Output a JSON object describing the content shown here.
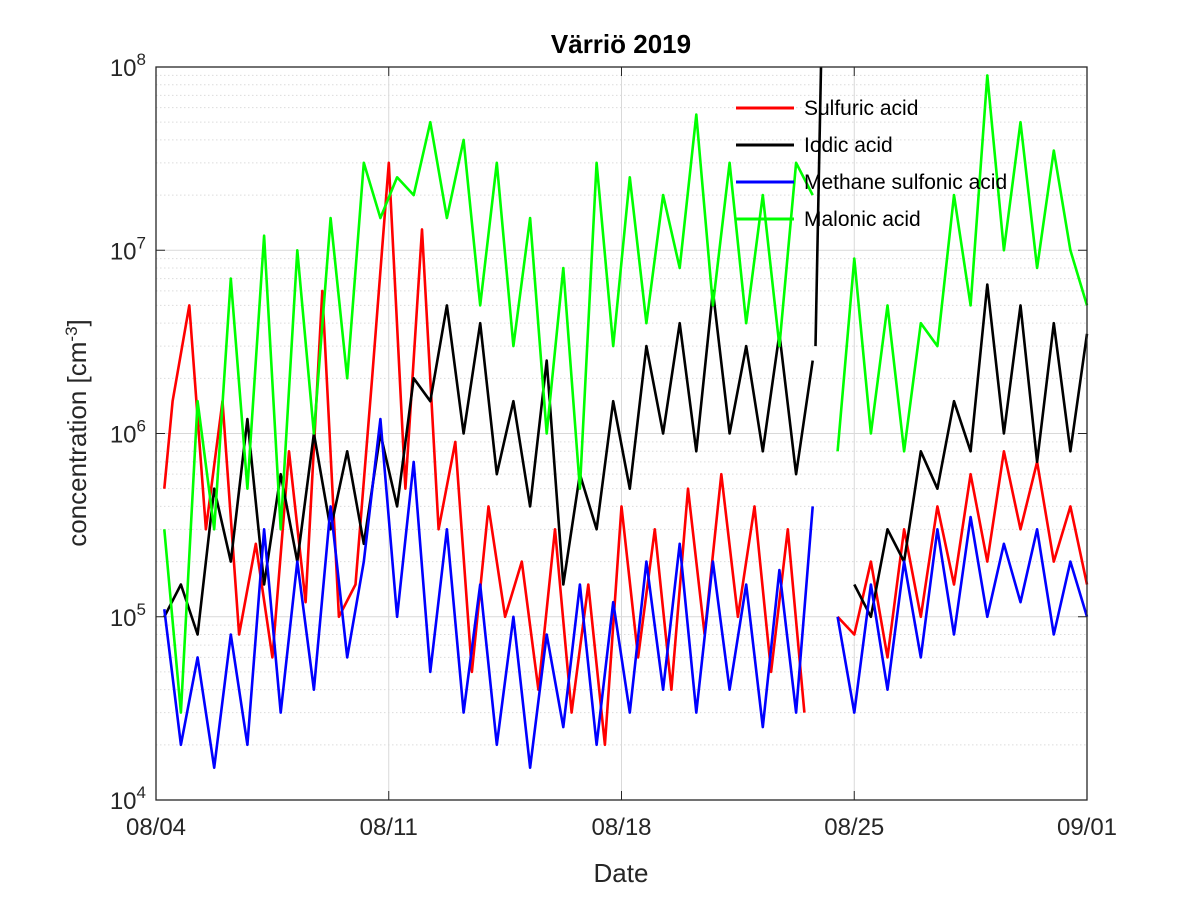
{
  "chart_data": {
    "type": "line",
    "title": "Värriö 2019",
    "xlabel": "Date",
    "ylabel_main": "concentration [cm",
    "ylabel_sup": "-3",
    "ylabel_close": "]",
    "yscale": "log",
    "ylim": [
      10000,
      100000000
    ],
    "xlim": [
      "2019-08-04",
      "2019-09-01"
    ],
    "grid": true,
    "minor_grid": true,
    "legend_position": "top-right",
    "x_ticks": [
      {
        "date": "2019-08-04",
        "label": "08/04"
      },
      {
        "date": "2019-08-11",
        "label": "08/11"
      },
      {
        "date": "2019-08-18",
        "label": "08/18"
      },
      {
        "date": "2019-08-25",
        "label": "08/25"
      },
      {
        "date": "2019-09-01",
        "label": "09/01"
      }
    ],
    "y_ticks": [
      {
        "value": 10000,
        "base": "10",
        "exp": "4"
      },
      {
        "value": 100000,
        "base": "10",
        "exp": "5"
      },
      {
        "value": 1000000,
        "base": "10",
        "exp": "6"
      },
      {
        "value": 10000000,
        "base": "10",
        "exp": "7"
      },
      {
        "value": 100000000,
        "base": "10",
        "exp": "8"
      }
    ],
    "series": [
      {
        "name": "Sulfuric acid",
        "color": "#ff0000",
        "segments": [
          {
            "x": [
              "2019-08-04T06:00",
              "2019-08-04T12:00",
              "2019-08-05T00:00",
              "2019-08-05T12:00",
              "2019-08-06T00:00",
              "2019-08-06T12:00",
              "2019-08-07T00:00",
              "2019-08-07T12:00",
              "2019-08-08T00:00",
              "2019-08-08T12:00",
              "2019-08-09T00:00",
              "2019-08-09T12:00",
              "2019-08-10T00:00",
              "2019-08-10T12:00",
              "2019-08-11T00:00",
              "2019-08-11T12:00",
              "2019-08-12T00:00",
              "2019-08-12T12:00",
              "2019-08-13T00:00",
              "2019-08-13T12:00",
              "2019-08-14T00:00",
              "2019-08-14T12:00",
              "2019-08-15T00:00",
              "2019-08-15T12:00",
              "2019-08-16T00:00",
              "2019-08-16T12:00",
              "2019-08-17T00:00",
              "2019-08-17T12:00",
              "2019-08-18T00:00",
              "2019-08-18T12:00",
              "2019-08-19T00:00",
              "2019-08-19T12:00",
              "2019-08-20T00:00",
              "2019-08-20T12:00",
              "2019-08-21T00:00",
              "2019-08-21T12:00",
              "2019-08-22T00:00",
              "2019-08-22T12:00",
              "2019-08-23T00:00",
              "2019-08-23T12:00"
            ],
            "y": [
              500000,
              1500000,
              5000000,
              300000,
              1500000,
              80000,
              250000,
              60000,
              800000,
              120000,
              6000000,
              100000,
              150000,
              2000000,
              30000000,
              500000,
              13000000,
              300000,
              900000,
              50000,
              400000,
              100000,
              200000,
              40000,
              300000,
              30000,
              150000,
              20000,
              400000,
              60000,
              300000,
              40000,
              500000,
              80000,
              600000,
              100000,
              400000,
              50000,
              300000,
              30000
            ]
          },
          {
            "x": [
              "2019-08-24T12:00",
              "2019-08-25T00:00",
              "2019-08-25T12:00",
              "2019-08-26T00:00",
              "2019-08-26T12:00",
              "2019-08-27T00:00",
              "2019-08-27T12:00",
              "2019-08-28T00:00",
              "2019-08-28T12:00",
              "2019-08-29T00:00",
              "2019-08-29T12:00",
              "2019-08-30T00:00",
              "2019-08-30T12:00",
              "2019-08-31T00:00",
              "2019-08-31T12:00",
              "2019-09-01T00:00"
            ],
            "y": [
              100000,
              80000,
              200000,
              60000,
              300000,
              100000,
              400000,
              150000,
              600000,
              200000,
              800000,
              300000,
              700000,
              200000,
              400000,
              150000
            ]
          }
        ]
      },
      {
        "name": "Iodic acid",
        "color": "#000000",
        "segments": [
          {
            "x": [
              "2019-08-04T06:00",
              "2019-08-04T18:00",
              "2019-08-05T06:00",
              "2019-08-05T18:00",
              "2019-08-06T06:00",
              "2019-08-06T18:00",
              "2019-08-07T06:00",
              "2019-08-07T18:00",
              "2019-08-08T06:00",
              "2019-08-08T18:00",
              "2019-08-09T06:00",
              "2019-08-09T18:00",
              "2019-08-10T06:00",
              "2019-08-10T18:00",
              "2019-08-11T06:00",
              "2019-08-11T18:00",
              "2019-08-12T06:00",
              "2019-08-12T18:00",
              "2019-08-13T06:00",
              "2019-08-13T18:00",
              "2019-08-14T06:00",
              "2019-08-14T18:00",
              "2019-08-15T06:00",
              "2019-08-15T18:00",
              "2019-08-16T06:00",
              "2019-08-16T18:00",
              "2019-08-17T06:00",
              "2019-08-17T18:00",
              "2019-08-18T06:00",
              "2019-08-18T18:00",
              "2019-08-19T06:00",
              "2019-08-19T18:00",
              "2019-08-20T06:00",
              "2019-08-20T18:00",
              "2019-08-21T06:00",
              "2019-08-21T18:00",
              "2019-08-22T06:00",
              "2019-08-22T18:00",
              "2019-08-23T06:00",
              "2019-08-23T18:00"
            ],
            "y": [
              100000,
              150000,
              80000,
              500000,
              200000,
              1200000,
              150000,
              600000,
              200000,
              1000000,
              300000,
              800000,
              250000,
              1000000,
              400000,
              2000000,
              1500000,
              5000000,
              1000000,
              4000000,
              600000,
              1500000,
              400000,
              2500000,
              150000,
              600000,
              300000,
              1500000,
              500000,
              3000000,
              1000000,
              4000000,
              800000,
              6000000,
              1000000,
              3000000,
              800000,
              3500000,
              600000,
              2500000
            ]
          },
          {
            "x": [
              "2019-08-23T20:00",
              "2019-08-24T00:00"
            ],
            "y": [
              3000000,
              100000000
            ]
          },
          {
            "x": [
              "2019-08-25T00:00",
              "2019-08-25T12:00",
              "2019-08-26T00:00",
              "2019-08-26T12:00",
              "2019-08-27T00:00",
              "2019-08-27T12:00",
              "2019-08-28T00:00",
              "2019-08-28T12:00",
              "2019-08-29T00:00",
              "2019-08-29T12:00",
              "2019-08-30T00:00",
              "2019-08-30T12:00",
              "2019-08-31T00:00",
              "2019-08-31T12:00",
              "2019-09-01T00:00"
            ],
            "y": [
              150000,
              100000,
              300000,
              200000,
              800000,
              500000,
              1500000,
              800000,
              6500000,
              1000000,
              5000000,
              700000,
              4000000,
              800000,
              3500000
            ]
          }
        ]
      },
      {
        "name": "Methane sulfonic acid",
        "color": "#0000ff",
        "segments": [
          {
            "x": [
              "2019-08-04T06:00",
              "2019-08-04T18:00",
              "2019-08-05T06:00",
              "2019-08-05T18:00",
              "2019-08-06T06:00",
              "2019-08-06T18:00",
              "2019-08-07T06:00",
              "2019-08-07T18:00",
              "2019-08-08T06:00",
              "2019-08-08T18:00",
              "2019-08-09T06:00",
              "2019-08-09T18:00",
              "2019-08-10T06:00",
              "2019-08-10T18:00",
              "2019-08-11T06:00",
              "2019-08-11T18:00",
              "2019-08-12T06:00",
              "2019-08-12T18:00",
              "2019-08-13T06:00",
              "2019-08-13T18:00",
              "2019-08-14T06:00",
              "2019-08-14T18:00",
              "2019-08-15T06:00",
              "2019-08-15T18:00",
              "2019-08-16T06:00",
              "2019-08-16T18:00",
              "2019-08-17T06:00",
              "2019-08-17T18:00",
              "2019-08-18T06:00",
              "2019-08-18T18:00",
              "2019-08-19T06:00",
              "2019-08-19T18:00",
              "2019-08-20T06:00",
              "2019-08-20T18:00",
              "2019-08-21T06:00",
              "2019-08-21T18:00",
              "2019-08-22T06:00",
              "2019-08-22T18:00",
              "2019-08-23T06:00",
              "2019-08-23T18:00"
            ],
            "y": [
              110000,
              20000,
              60000,
              15000,
              80000,
              20000,
              300000,
              30000,
              200000,
              40000,
              400000,
              60000,
              200000,
              1200000,
              100000,
              700000,
              50000,
              300000,
              30000,
              150000,
              20000,
              100000,
              15000,
              80000,
              25000,
              150000,
              20000,
              120000,
              30000,
              200000,
              40000,
              250000,
              30000,
              200000,
              40000,
              150000,
              25000,
              180000,
              30000,
              400000
            ]
          },
          {
            "x": [
              "2019-08-24T12:00",
              "2019-08-25T00:00",
              "2019-08-25T12:00",
              "2019-08-26T00:00",
              "2019-08-26T12:00",
              "2019-08-27T00:00",
              "2019-08-27T12:00",
              "2019-08-28T00:00",
              "2019-08-28T12:00",
              "2019-08-29T00:00",
              "2019-08-29T12:00",
              "2019-08-30T00:00",
              "2019-08-30T12:00",
              "2019-08-31T00:00",
              "2019-08-31T12:00",
              "2019-09-01T00:00"
            ],
            "y": [
              100000,
              30000,
              150000,
              40000,
              200000,
              60000,
              300000,
              80000,
              350000,
              100000,
              250000,
              120000,
              300000,
              80000,
              200000,
              100000
            ]
          }
        ]
      },
      {
        "name": "Malonic acid",
        "color": "#00ff00",
        "segments": [
          {
            "x": [
              "2019-08-04T06:00",
              "2019-08-04T18:00",
              "2019-08-05T06:00",
              "2019-08-05T18:00",
              "2019-08-06T06:00",
              "2019-08-06T18:00",
              "2019-08-07T06:00",
              "2019-08-07T18:00",
              "2019-08-08T06:00",
              "2019-08-08T18:00",
              "2019-08-09T06:00",
              "2019-08-09T18:00",
              "2019-08-10T06:00",
              "2019-08-10T18:00",
              "2019-08-11T06:00",
              "2019-08-11T18:00",
              "2019-08-12T06:00",
              "2019-08-12T18:00",
              "2019-08-13T06:00",
              "2019-08-13T18:00",
              "2019-08-14T06:00",
              "2019-08-14T18:00",
              "2019-08-15T06:00",
              "2019-08-15T18:00",
              "2019-08-16T06:00",
              "2019-08-16T18:00",
              "2019-08-17T06:00",
              "2019-08-17T18:00",
              "2019-08-18T06:00",
              "2019-08-18T18:00",
              "2019-08-19T06:00",
              "2019-08-19T18:00",
              "2019-08-20T06:00",
              "2019-08-20T18:00",
              "2019-08-21T06:00",
              "2019-08-21T18:00",
              "2019-08-22T06:00",
              "2019-08-22T18:00",
              "2019-08-23T06:00",
              "2019-08-23T18:00"
            ],
            "y": [
              300000,
              30000,
              1500000,
              300000,
              7000000,
              500000,
              12000000,
              300000,
              10000000,
              1000000,
              15000000,
              2000000,
              30000000,
              15000000,
              25000000,
              20000000,
              50000000,
              15000000,
              40000000,
              5000000,
              30000000,
              3000000,
              15000000,
              1000000,
              8000000,
              500000,
              30000000,
              3000000,
              25000000,
              4000000,
              20000000,
              8000000,
              55000000,
              5000000,
              30000000,
              4000000,
              20000000,
              3000000,
              30000000,
              20000000
            ]
          },
          {
            "x": [
              "2019-08-24T12:00",
              "2019-08-25T00:00",
              "2019-08-25T12:00",
              "2019-08-26T00:00",
              "2019-08-26T12:00",
              "2019-08-27T00:00",
              "2019-08-27T12:00",
              "2019-08-28T00:00",
              "2019-08-28T12:00",
              "2019-08-29T00:00",
              "2019-08-29T12:00",
              "2019-08-30T00:00",
              "2019-08-30T12:00",
              "2019-08-31T00:00",
              "2019-08-31T12:00",
              "2019-09-01T00:00"
            ],
            "y": [
              800000,
              9000000,
              1000000,
              5000000,
              800000,
              4000000,
              3000000,
              20000000,
              5000000,
              90000000,
              10000000,
              50000000,
              8000000,
              35000000,
              10000000,
              5000000
            ]
          }
        ]
      }
    ]
  }
}
